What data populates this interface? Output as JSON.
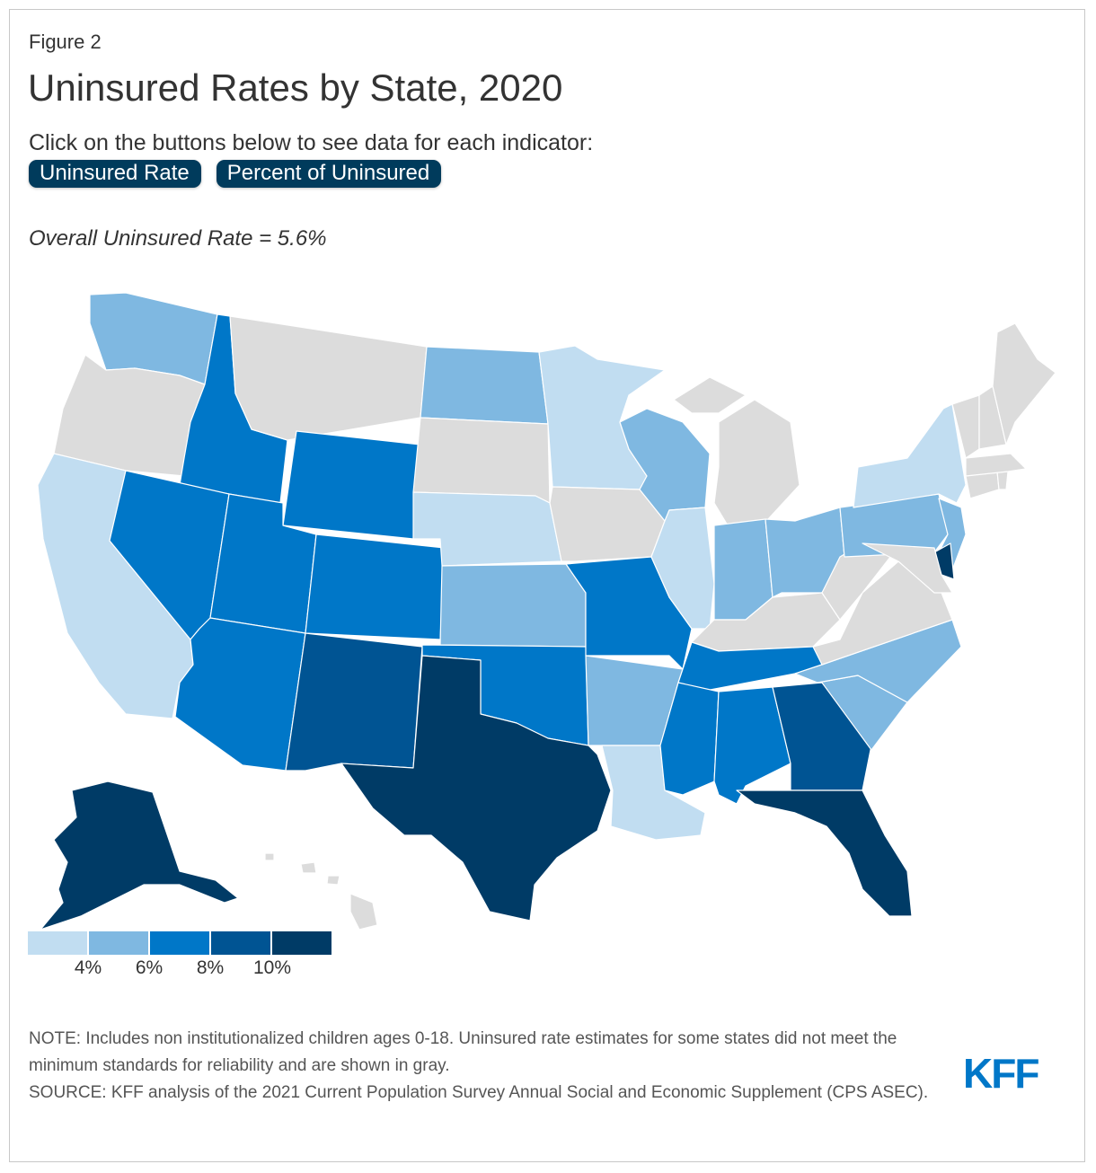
{
  "figure_label": "Figure 2",
  "title": "Uninsured Rates by State, 2020",
  "instructions": "Click on the buttons below to see data for each indicator:",
  "buttons": [
    {
      "label": "Uninsured Rate"
    },
    {
      "label": "Percent of Uninsured"
    }
  ],
  "overall": "Overall Uninsured Rate = 5.6%",
  "colors": {
    "bin1": "#c1ddf1",
    "bin2": "#7fb8e1",
    "bin3": "#0077c8",
    "bin4": "#005493",
    "bin5": "#003b66",
    "unreliable": "#dcdcdc",
    "accent": "#003b5c"
  },
  "legend": {
    "labels": [
      "4%",
      "6%",
      "8%",
      "10%"
    ]
  },
  "chart_data": {
    "type": "choropleth",
    "title": "Uninsured Rates by State, 2020",
    "bins": [
      "<4%",
      "4-6%",
      "6-8%",
      "8-10%",
      ">10%"
    ],
    "states": [
      {
        "state": "WA",
        "bin": 2
      },
      {
        "state": "OR",
        "bin": 0
      },
      {
        "state": "CA",
        "bin": 1
      },
      {
        "state": "ID",
        "bin": 3
      },
      {
        "state": "NV",
        "bin": 3
      },
      {
        "state": "MT",
        "bin": 0
      },
      {
        "state": "WY",
        "bin": 3
      },
      {
        "state": "UT",
        "bin": 3
      },
      {
        "state": "AZ",
        "bin": 3
      },
      {
        "state": "CO",
        "bin": 3
      },
      {
        "state": "NM",
        "bin": 4
      },
      {
        "state": "ND",
        "bin": 2
      },
      {
        "state": "SD",
        "bin": 0
      },
      {
        "state": "NE",
        "bin": 1
      },
      {
        "state": "KS",
        "bin": 2
      },
      {
        "state": "OK",
        "bin": 3
      },
      {
        "state": "TX",
        "bin": 5
      },
      {
        "state": "MN",
        "bin": 1
      },
      {
        "state": "IA",
        "bin": 0
      },
      {
        "state": "MO",
        "bin": 3
      },
      {
        "state": "AR",
        "bin": 2
      },
      {
        "state": "LA",
        "bin": 1
      },
      {
        "state": "WI",
        "bin": 2
      },
      {
        "state": "IL",
        "bin": 1
      },
      {
        "state": "MI",
        "bin": 0
      },
      {
        "state": "IN",
        "bin": 2
      },
      {
        "state": "OH",
        "bin": 2
      },
      {
        "state": "KY",
        "bin": 0
      },
      {
        "state": "TN",
        "bin": 3
      },
      {
        "state": "MS",
        "bin": 3
      },
      {
        "state": "AL",
        "bin": 3
      },
      {
        "state": "GA",
        "bin": 4
      },
      {
        "state": "FL",
        "bin": 5
      },
      {
        "state": "SC",
        "bin": 2
      },
      {
        "state": "NC",
        "bin": 2
      },
      {
        "state": "VA",
        "bin": 0
      },
      {
        "state": "WV",
        "bin": 0
      },
      {
        "state": "PA",
        "bin": 2
      },
      {
        "state": "NY",
        "bin": 1
      },
      {
        "state": "NJ",
        "bin": 2
      },
      {
        "state": "DE",
        "bin": 5
      },
      {
        "state": "MD",
        "bin": 0
      },
      {
        "state": "CT",
        "bin": 0
      },
      {
        "state": "RI",
        "bin": 0
      },
      {
        "state": "MA",
        "bin": 0
      },
      {
        "state": "VT",
        "bin": 0
      },
      {
        "state": "NH",
        "bin": 0
      },
      {
        "state": "ME",
        "bin": 0
      },
      {
        "state": "AK",
        "bin": 5
      },
      {
        "state": "HI",
        "bin": 0
      }
    ]
  },
  "note": "NOTE: Includes non institutionalized children ages 0-18. Uninsured rate estimates for some states did not meet the minimum standards for reliability and are shown in gray.",
  "source": "SOURCE: KFF analysis of the 2021 Current Population Survey Annual Social and Economic Supplement (CPS ASEC).",
  "logo": "KFF"
}
